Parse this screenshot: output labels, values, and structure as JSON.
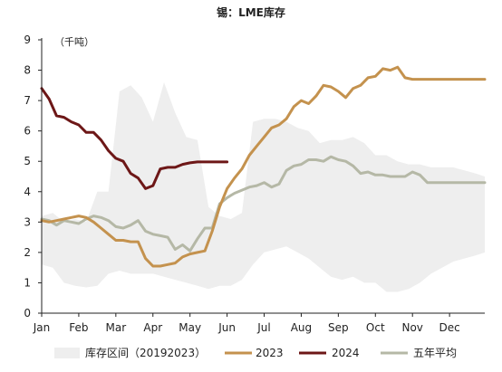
{
  "chart_data": {
    "type": "line",
    "title": "锡：LME库存",
    "unit_label": "（千吨）",
    "ylim": [
      0,
      9
    ],
    "yticks": [
      0,
      1,
      2,
      3,
      4,
      5,
      6,
      7,
      8,
      9
    ],
    "categories": [
      "Jan",
      "Feb",
      "Mar",
      "Apr",
      "May",
      "Jun",
      "Jul",
      "Aug",
      "Sep",
      "Oct",
      "Nov",
      "Dec"
    ],
    "xlim": [
      0,
      11.95
    ],
    "grid": false,
    "legend_position": "bottom",
    "range_band": {
      "name": "库存区间（20192023）",
      "color": "#eeeeee",
      "x": [
        0,
        0.3,
        0.6,
        0.9,
        1.2,
        1.5,
        1.8,
        2.1,
        2.4,
        2.7,
        3.0,
        3.3,
        3.6,
        3.9,
        4.2,
        4.5,
        4.8,
        5.1,
        5.4,
        5.7,
        6.0,
        6.3,
        6.6,
        6.9,
        7.2,
        7.5,
        7.8,
        8.1,
        8.4,
        8.7,
        9.0,
        9.3,
        9.6,
        9.9,
        10.2,
        10.5,
        10.8,
        11.1,
        11.4,
        11.7,
        11.95
      ],
      "upper": [
        3.2,
        3.3,
        3.0,
        3.1,
        3.0,
        4.0,
        4.0,
        7.3,
        7.5,
        7.1,
        6.3,
        7.6,
        6.6,
        5.8,
        5.7,
        3.5,
        3.2,
        3.1,
        3.3,
        6.3,
        6.4,
        6.4,
        6.3,
        6.1,
        6.0,
        5.6,
        5.7,
        5.7,
        5.8,
        5.6,
        5.2,
        5.2,
        5.0,
        4.9,
        4.9,
        4.8,
        4.8,
        4.8,
        4.7,
        4.6,
        4.5
      ],
      "lower": [
        1.6,
        1.5,
        1.0,
        0.9,
        0.85,
        0.9,
        1.3,
        1.4,
        1.3,
        1.3,
        1.3,
        1.2,
        1.1,
        1.0,
        0.9,
        0.8,
        0.9,
        0.9,
        1.1,
        1.6,
        2.0,
        2.1,
        2.2,
        2.0,
        1.8,
        1.5,
        1.2,
        1.1,
        1.2,
        1.0,
        1.0,
        0.7,
        0.7,
        0.8,
        1.0,
        1.3,
        1.5,
        1.7,
        1.8,
        1.9,
        2.0
      ]
    },
    "series": [
      {
        "name": "2023",
        "color": "#c4924e",
        "x": [
          0,
          0.2,
          0.4,
          0.6,
          0.8,
          1.0,
          1.2,
          1.4,
          1.6,
          1.8,
          2.0,
          2.2,
          2.4,
          2.6,
          2.8,
          3.0,
          3.2,
          3.4,
          3.6,
          3.8,
          4.0,
          4.2,
          4.4,
          4.6,
          4.8,
          5.0,
          5.2,
          5.4,
          5.6,
          5.8,
          6.0,
          6.2,
          6.4,
          6.6,
          6.8,
          7.0,
          7.2,
          7.4,
          7.6,
          7.8,
          8.0,
          8.2,
          8.4,
          8.6,
          8.8,
          9.0,
          9.2,
          9.4,
          9.6,
          9.8,
          10.0,
          10.2,
          10.4,
          10.6,
          10.8,
          11.0,
          11.2,
          11.4,
          11.6,
          11.8,
          11.95
        ],
        "values": [
          3.05,
          3.0,
          3.05,
          3.1,
          3.15,
          3.2,
          3.15,
          3.0,
          2.8,
          2.6,
          2.4,
          2.4,
          2.35,
          2.35,
          1.8,
          1.55,
          1.55,
          1.6,
          1.65,
          1.85,
          1.95,
          2.0,
          2.05,
          2.7,
          3.5,
          4.1,
          4.45,
          4.75,
          5.2,
          5.5,
          5.8,
          6.1,
          6.2,
          6.4,
          6.8,
          7.0,
          6.9,
          7.15,
          7.5,
          7.45,
          7.3,
          7.1,
          7.4,
          7.5,
          7.75,
          7.8,
          8.05,
          8.0,
          8.1,
          7.75,
          7.7,
          7.7,
          7.7,
          7.7,
          7.7,
          7.7,
          7.7,
          7.7,
          7.7,
          7.7,
          7.7
        ]
      },
      {
        "name": "2024",
        "color": "#6d1717",
        "x": [
          0,
          0.2,
          0.4,
          0.6,
          0.8,
          1.0,
          1.2,
          1.4,
          1.6,
          1.8,
          2.0,
          2.2,
          2.4,
          2.6,
          2.8,
          3.0,
          3.2,
          3.4,
          3.6,
          3.8,
          4.0,
          4.2,
          4.4,
          4.6,
          4.8,
          5.0
        ],
        "values": [
          7.4,
          7.05,
          6.5,
          6.45,
          6.3,
          6.2,
          5.95,
          5.95,
          5.7,
          5.35,
          5.1,
          5.0,
          4.6,
          4.45,
          4.1,
          4.2,
          4.75,
          4.8,
          4.8,
          4.9,
          4.95,
          4.98,
          4.98,
          4.98,
          4.98,
          4.98
        ]
      },
      {
        "name": "五年平均",
        "color": "#b5b8a6",
        "x": [
          0,
          0.2,
          0.4,
          0.6,
          0.8,
          1.0,
          1.2,
          1.4,
          1.6,
          1.8,
          2.0,
          2.2,
          2.4,
          2.6,
          2.8,
          3.0,
          3.2,
          3.4,
          3.6,
          3.8,
          4.0,
          4.2,
          4.4,
          4.6,
          4.8,
          5.0,
          5.2,
          5.4,
          5.6,
          5.8,
          6.0,
          6.2,
          6.4,
          6.6,
          6.8,
          7.0,
          7.2,
          7.4,
          7.6,
          7.8,
          8.0,
          8.2,
          8.4,
          8.6,
          8.8,
          9.0,
          9.2,
          9.4,
          9.6,
          9.8,
          10.0,
          10.2,
          10.4,
          10.6,
          10.8,
          11.0,
          11.2,
          11.4,
          11.6,
          11.8,
          11.95
        ],
        "values": [
          3.1,
          3.05,
          2.9,
          3.05,
          3.0,
          2.95,
          3.1,
          3.2,
          3.15,
          3.05,
          2.85,
          2.8,
          2.9,
          3.05,
          2.7,
          2.6,
          2.55,
          2.5,
          2.1,
          2.25,
          2.05,
          2.45,
          2.8,
          2.8,
          3.6,
          3.8,
          3.95,
          4.05,
          4.15,
          4.2,
          4.3,
          4.15,
          4.25,
          4.7,
          4.85,
          4.9,
          5.05,
          5.05,
          5.0,
          5.15,
          5.05,
          5.0,
          4.85,
          4.6,
          4.65,
          4.55,
          4.55,
          4.5,
          4.5,
          4.5,
          4.65,
          4.55,
          4.3,
          4.3,
          4.3,
          4.3,
          4.3,
          4.3,
          4.3,
          4.3,
          4.3
        ]
      }
    ]
  }
}
